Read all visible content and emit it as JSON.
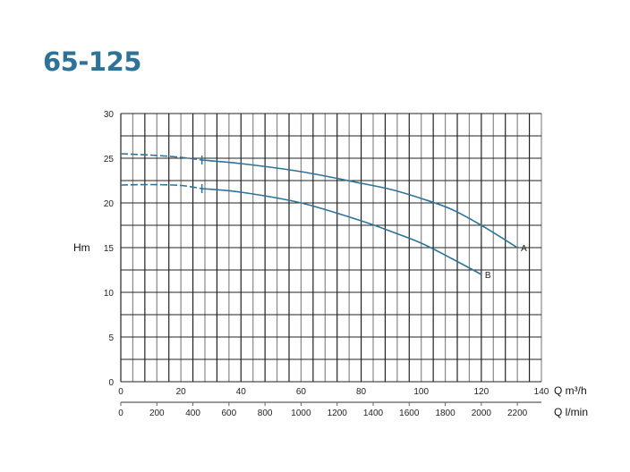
{
  "title": "65-125",
  "chart_data": {
    "type": "line",
    "title": "65-125",
    "ylabel": "Hm",
    "xlabel": "Q m³/h",
    "xlabel_secondary": "Q l/min",
    "xlim": [
      0,
      140
    ],
    "ylim": [
      0,
      30
    ],
    "x_ticks": [
      0,
      20,
      40,
      60,
      80,
      100,
      120,
      140
    ],
    "y_ticks": [
      0,
      5,
      10,
      15,
      20,
      25,
      30
    ],
    "x_grid_step": 4,
    "y_grid_step": 2.5,
    "secondary_ticks": [
      0,
      200,
      400,
      600,
      800,
      1000,
      1200,
      1400,
      1600,
      1800,
      2000,
      2200
    ],
    "secondary_scale_lmin_per_m3h": 16.667,
    "grid": true,
    "line_color": "#2e7397",
    "dashed_until_x": 27,
    "series": [
      {
        "name": "A",
        "x": [
          0,
          10,
          20,
          27,
          40,
          60,
          80,
          90,
          100,
          110,
          120,
          132
        ],
        "y": [
          25.5,
          25.35,
          25.1,
          24.8,
          24.4,
          23.5,
          22.2,
          21.5,
          20.5,
          19.3,
          17.5,
          15
        ]
      },
      {
        "name": "B",
        "x": [
          0,
          10,
          20,
          27,
          40,
          60,
          80,
          90,
          100,
          110,
          120
        ],
        "y": [
          22,
          22.05,
          21.95,
          21.6,
          21.2,
          20,
          18,
          16.8,
          15.5,
          13.8,
          12
        ]
      }
    ]
  }
}
